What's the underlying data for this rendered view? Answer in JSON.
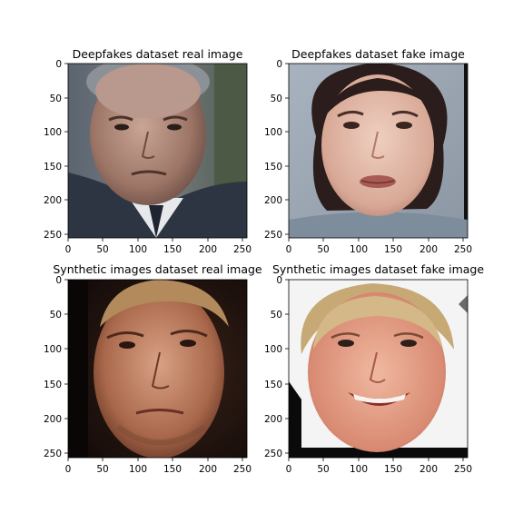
{
  "figure": {
    "panels": [
      {
        "title": "Deepfakes dataset real image",
        "x_ticks": [
          "0",
          "50",
          "100",
          "150",
          "200",
          "250"
        ],
        "y_ticks": [
          "0",
          "50",
          "100",
          "150",
          "200",
          "250"
        ],
        "subject": "middle-aged man, bald, grey suit, white shirt, dark tie"
      },
      {
        "title": "Deepfakes dataset fake image",
        "x_ticks": [
          "0",
          "50",
          "100",
          "150",
          "200",
          "250"
        ],
        "y_ticks": [
          "0",
          "50",
          "100",
          "150",
          "200",
          "250"
        ],
        "subject": "woman with dark bob haircut, grey background"
      },
      {
        "title": "Synthetic images dataset real image",
        "x_ticks": [
          "0",
          "50",
          "100",
          "150",
          "200",
          "250"
        ],
        "y_ticks": [
          "0",
          "50",
          "100",
          "150",
          "200",
          "250"
        ],
        "subject": "blond man, three-quarter face, dark background"
      },
      {
        "title": "Synthetic images dataset fake image",
        "x_ticks": [
          "0",
          "50",
          "100",
          "150",
          "200",
          "250"
        ],
        "y_ticks": [
          "0",
          "50",
          "100",
          "150",
          "200",
          "250"
        ],
        "subject": "smiling woman with short blonde hair, white background"
      }
    ],
    "axis_range": [
      0,
      256
    ]
  }
}
